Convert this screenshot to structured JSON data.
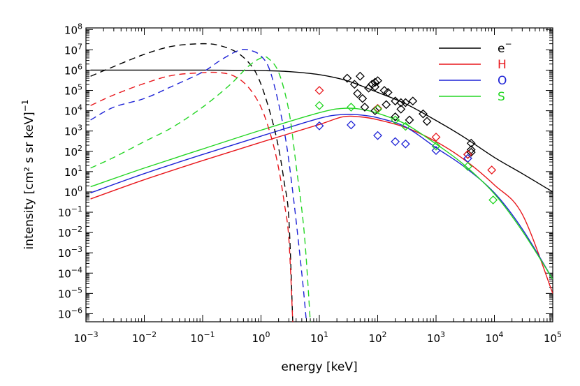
{
  "chart_data": {
    "type": "line",
    "xlabel": "energy [keV]",
    "ylabel": "intensity [cm² s sr keV]",
    "ylabel_exponent": "−1",
    "x_scale": "log",
    "y_scale": "log",
    "xlim": [
      0.001,
      100000
    ],
    "ylim": [
      4e-07,
      120000000.0
    ],
    "x_ticks": [
      {
        "value": 0.001,
        "base": "10",
        "exp": "−3"
      },
      {
        "value": 0.01,
        "base": "10",
        "exp": "−2"
      },
      {
        "value": 0.1,
        "base": "10",
        "exp": "−1"
      },
      {
        "value": 1,
        "base": "10",
        "exp": "0"
      },
      {
        "value": 10,
        "base": "10",
        "exp": "1"
      },
      {
        "value": 100,
        "base": "10",
        "exp": "2"
      },
      {
        "value": 1000,
        "base": "10",
        "exp": "3"
      },
      {
        "value": 10000,
        "base": "10",
        "exp": "4"
      },
      {
        "value": 100000,
        "base": "10",
        "exp": "5"
      }
    ],
    "y_ticks": [
      {
        "value": 1e-06,
        "base": "10",
        "exp": "−6"
      },
      {
        "value": 1e-05,
        "base": "10",
        "exp": "−5"
      },
      {
        "value": 0.0001,
        "base": "10",
        "exp": "−4"
      },
      {
        "value": 0.001,
        "base": "10",
        "exp": "−3"
      },
      {
        "value": 0.01,
        "base": "10",
        "exp": "−2"
      },
      {
        "value": 0.1,
        "base": "10",
        "exp": "−1"
      },
      {
        "value": 1,
        "base": "10",
        "exp": "0"
      },
      {
        "value": 10,
        "base": "10",
        "exp": "1"
      },
      {
        "value": 100,
        "base": "10",
        "exp": "2"
      },
      {
        "value": 1000,
        "base": "10",
        "exp": "3"
      },
      {
        "value": 10000,
        "base": "10",
        "exp": "4"
      },
      {
        "value": 100000,
        "base": "10",
        "exp": "5"
      },
      {
        "value": 1000000,
        "base": "10",
        "exp": "6"
      },
      {
        "value": 10000000,
        "base": "10",
        "exp": "7"
      },
      {
        "value": 100000000,
        "base": "10",
        "exp": "8"
      }
    ],
    "legend_position": "top-right",
    "legend": [
      {
        "label": "e",
        "sup": "−",
        "color": "#000000"
      },
      {
        "label": "H",
        "sup": "",
        "color": "#e8161b"
      },
      {
        "label": "O",
        "sup": "",
        "color": "#1d22d6"
      },
      {
        "label": "S",
        "sup": "",
        "color": "#24d624"
      }
    ],
    "series": [
      {
        "label": "e",
        "color": "#000000",
        "style": "solid",
        "x": [
          0.0012,
          0.01,
          0.1,
          1,
          3,
          10,
          30,
          100,
          300,
          1000,
          3000,
          10000,
          30000,
          100000
        ],
        "y": [
          1000000.0,
          1000000.0,
          1000000.0,
          950000.0,
          850000.0,
          600000.0,
          300000.0,
          80000.0,
          22000.0,
          3300.0,
          500,
          50,
          8,
          1
        ]
      },
      {
        "label": "H",
        "color": "#e8161b",
        "style": "solid",
        "x": [
          0.0012,
          0.01,
          0.1,
          1,
          10,
          25,
          50,
          100,
          300,
          1000,
          3000,
          10000,
          30000,
          100000
        ],
        "y": [
          0.45,
          4,
          35,
          280,
          2100,
          5000,
          5000,
          3600,
          1500,
          300,
          40,
          2.2,
          0.08,
          1e-05
        ]
      },
      {
        "label": "O",
        "color": "#1d22d6",
        "style": "solid",
        "x": [
          0.0012,
          0.01,
          0.1,
          1,
          10,
          25,
          50,
          100,
          300,
          1000,
          3000,
          10000,
          30000,
          100000
        ],
        "y": [
          0.9,
          8,
          70,
          560,
          4200,
          6500,
          6200,
          4500,
          1600,
          150,
          18,
          0.9,
          0.015,
          5e-05
        ]
      },
      {
        "label": "S",
        "color": "#24d624",
        "style": "solid",
        "x": [
          0.0012,
          0.01,
          0.1,
          1,
          10,
          25,
          50,
          100,
          300,
          1000,
          3000,
          10000,
          30000,
          100000
        ],
        "y": [
          1.8,
          15,
          130,
          1100,
          8000,
          13000.0,
          12000.0,
          7500,
          2200,
          230,
          22,
          0.8,
          0.012,
          5e-05
        ]
      },
      {
        "label": "e",
        "color": "#000000",
        "style": "dashed",
        "x": [
          0.0012,
          0.003,
          0.01,
          0.03,
          0.1,
          0.2,
          0.4,
          0.7,
          1,
          1.5,
          2,
          2.5,
          3,
          3.5
        ],
        "y": [
          500000.0,
          1500000.0,
          6000000.0,
          15000000.0,
          20000000.0,
          16000000.0,
          7000000.0,
          1500000.0,
          200000.0,
          5000,
          150,
          3,
          0.05,
          4e-07
        ]
      },
      {
        "label": "H",
        "color": "#e8161b",
        "style": "dashed",
        "x": [
          0.0012,
          0.003,
          0.01,
          0.03,
          0.1,
          0.2,
          0.35,
          0.6,
          1,
          1.5,
          2,
          2.5,
          3,
          3.5
        ],
        "y": [
          18000.0,
          60000.0,
          220000.0,
          550000.0,
          750000.0,
          750000.0,
          500000.0,
          150000.0,
          15000.0,
          500,
          15,
          0.3,
          0.005,
          4e-07
        ]
      },
      {
        "label": "O",
        "color": "#1d22d6",
        "style": "dashed",
        "x": [
          0.0012,
          0.003,
          0.01,
          0.03,
          0.1,
          0.2,
          0.4,
          0.6,
          1,
          1.5,
          2.5,
          3.5,
          5,
          6
        ],
        "y": [
          3500.0,
          15000.0,
          40000.0,
          160000.0,
          800000.0,
          3000000.0,
          9000000.0,
          10000000.0,
          5000000.0,
          600000.0,
          1000.0,
          1,
          0.0001,
          4e-07
        ]
      },
      {
        "label": "S",
        "color": "#24d624",
        "style": "dashed",
        "x": [
          0.0012,
          0.003,
          0.01,
          0.03,
          0.1,
          0.3,
          0.6,
          1,
          1.3,
          2,
          3,
          4,
          5.5,
          7
        ],
        "y": [
          15,
          50,
          300,
          1500,
          15000.0,
          200000.0,
          1500000.0,
          4000000.0,
          4000000.0,
          800000.0,
          10000.0,
          20,
          0.01,
          4e-07
        ]
      }
    ],
    "scatter": [
      {
        "label": "e",
        "color": "#000000",
        "x": [
          30,
          40,
          50,
          55,
          60,
          70,
          80,
          90,
          90,
          100,
          130,
          140,
          150,
          200,
          200,
          250,
          250,
          300,
          350,
          400,
          600,
          700,
          4000,
          4000,
          4000,
          3500,
          45,
          90
        ],
        "y": [
          400000.0,
          200000.0,
          500000.0,
          40000.0,
          15000.0,
          130000.0,
          200000.0,
          250000.0,
          10000.0,
          300000.0,
          100000.0,
          20000.0,
          80000.0,
          30000.0,
          5000,
          12000.0,
          25000.0,
          25000.0,
          3500,
          30000.0,
          7000,
          3000,
          250.0,
          120,
          90,
          70,
          70000.0,
          150000.0
        ]
      },
      {
        "label": "H",
        "color": "#e8161b",
        "x": [
          10,
          100,
          1000,
          3500,
          9000
        ],
        "y": [
          100000.0,
          13000.0,
          500,
          70,
          12
        ]
      },
      {
        "label": "O",
        "color": "#1d22d6",
        "x": [
          10,
          35,
          100,
          200,
          300,
          1000,
          3500
        ],
        "y": [
          1800,
          2000,
          600,
          300,
          230,
          110,
          45
        ]
      },
      {
        "label": "S",
        "color": "#24d624",
        "x": [
          10,
          35,
          100,
          200,
          300,
          1000,
          3500,
          9500
        ],
        "y": [
          18000.0,
          15000.0,
          12000.0,
          3500,
          1700,
          180,
          18,
          0.4
        ]
      }
    ]
  }
}
